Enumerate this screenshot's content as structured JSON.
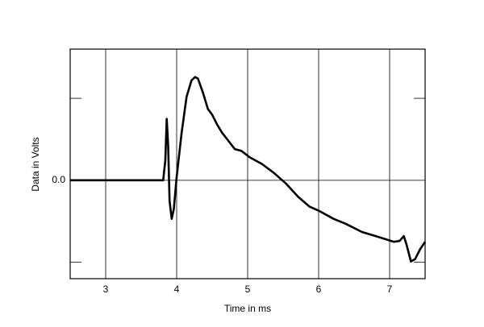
{
  "chart_data": {
    "type": "line",
    "xlabel": "Time in ms",
    "ylabel": "Data in Volts",
    "x": [
      2.5,
      3.81,
      3.84,
      3.86,
      3.88,
      3.9,
      3.93,
      3.96,
      4.0,
      4.07,
      4.14,
      4.21,
      4.26,
      4.3,
      4.37,
      4.44,
      4.5,
      4.57,
      4.64,
      4.73,
      4.82,
      4.91,
      5.03,
      5.2,
      5.37,
      5.54,
      5.71,
      5.87,
      6.0,
      6.21,
      6.38,
      6.61,
      6.84,
      7.06,
      7.14,
      7.2,
      7.24,
      7.3,
      7.36,
      7.43,
      7.5
    ],
    "values": [
      0,
      0,
      0.24,
      0.75,
      0.43,
      -0.25,
      -0.47,
      -0.35,
      0.04,
      0.58,
      1.02,
      1.22,
      1.26,
      1.24,
      1.07,
      0.87,
      0.8,
      0.68,
      0.58,
      0.48,
      0.38,
      0.36,
      0.28,
      0.2,
      0.09,
      -0.04,
      -0.2,
      -0.32,
      -0.37,
      -0.47,
      -0.53,
      -0.63,
      -0.69,
      -0.75,
      -0.74,
      -0.68,
      -0.79,
      -0.99,
      -0.96,
      -0.84,
      -0.75
    ],
    "color": "#000000",
    "xlim": [
      2.5,
      7.5
    ],
    "xticks": [
      3,
      4,
      5,
      6,
      7
    ],
    "ylim": [
      -1.2,
      1.6
    ],
    "yticks": [
      {
        "value": 0,
        "label": "0.0"
      }
    ],
    "minor_yticks": [
      -1,
      1
    ],
    "grid": true
  }
}
